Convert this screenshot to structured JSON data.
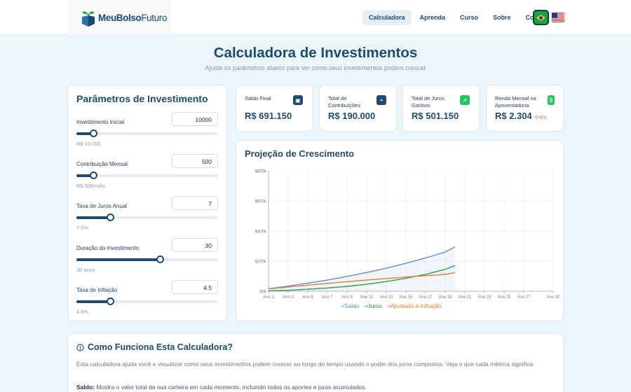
{
  "nav": {
    "logo_text_bold": "MeuBolso",
    "logo_text_light": "Futuro",
    "items": [
      {
        "label": "Calculadora"
      },
      {
        "label": "Aprenda"
      },
      {
        "label": "Curso"
      },
      {
        "label": "Sobre"
      },
      {
        "label": "Contato"
      }
    ],
    "active": "Calculadora",
    "flags": [
      "brazil-flag-icon",
      "usa-flag-icon"
    ]
  },
  "header": {
    "title": "Calculadora de Investimentos",
    "subtitle": "Ajuste os parâmetros abaixo para ver como seus investimentos podem crescer"
  },
  "params": {
    "title": "Parâmetros de Investimento",
    "items": [
      {
        "label": "Investimento Inicial",
        "value": "10000",
        "display": "R$ 10.000",
        "level": 0.12
      },
      {
        "label": "Contribuição Mensal",
        "value": "500",
        "display": "R$ 500/mês",
        "level": 0.12
      },
      {
        "label": "Taxa de Juros Anual",
        "value": "7",
        "display": "7.0%",
        "level": 0.24
      },
      {
        "label": "Duração do Investimento",
        "value": "30",
        "display": "30 anos",
        "level": 0.59
      },
      {
        "label": "Taxa de Inflação",
        "value": "4.5",
        "display": "4.5%",
        "level": 0.24
      }
    ]
  },
  "stats": [
    {
      "label": "Saldo Final",
      "value": "R$ 691.150",
      "suffix": "",
      "icon": "wallet-icon",
      "color": "#1d4a72"
    },
    {
      "label": "Total de Contribuições",
      "value": "R$ 190.000",
      "suffix": "",
      "icon": "piggy-bank-icon",
      "color": "#1d4a72"
    },
    {
      "label": "Total de Juros Ganhos",
      "value": "R$ 501.150",
      "suffix": "",
      "icon": "trending-up-icon",
      "color": "#22c55e"
    },
    {
      "label": "Renda Mensal na Aposentadoria",
      "value": "R$ 2.304",
      "suffix": "/mês",
      "icon": "dollar-icon",
      "color": "#22c55e"
    }
  ],
  "chart": {
    "title": "Projeção de Crescimento"
  },
  "chart_data": {
    "type": "line",
    "x": [
      "Ano 1",
      "Ano 3",
      "Ano 5",
      "Ano 7",
      "Ano 9",
      "Ano 11",
      "Ano 13",
      "Ano 15",
      "Ano 17",
      "Ano 19",
      "Ano 21",
      "Ano 23",
      "Ano 25",
      "Ano 27",
      "Ano 30"
    ],
    "ylim": [
      0,
      800000
    ],
    "y_ticks": [
      "$0k",
      "$200k",
      "$400k",
      "$600k",
      "$800k"
    ],
    "grid": true,
    "legend": "bottom",
    "series": [
      {
        "name": "Saldo",
        "color": "#5b8ed6",
        "points": [
          [
            1,
            16000
          ],
          [
            3,
            34000
          ],
          [
            5,
            53000
          ],
          [
            7,
            74000
          ],
          [
            9,
            98000
          ],
          [
            11,
            124000
          ],
          [
            13,
            153000
          ],
          [
            15,
            186000
          ],
          [
            17,
            221000
          ],
          [
            19,
            260000
          ],
          [
            20,
            295000
          ]
        ]
      },
      {
        "name": "Juros",
        "color": "#22a34a",
        "points": [
          [
            1,
            2000
          ],
          [
            3,
            6000
          ],
          [
            5,
            13000
          ],
          [
            7,
            21000
          ],
          [
            9,
            32000
          ],
          [
            11,
            46000
          ],
          [
            13,
            64000
          ],
          [
            15,
            86000
          ],
          [
            17,
            112000
          ],
          [
            19,
            145000
          ],
          [
            20,
            170000
          ]
        ]
      },
      {
        "name": "Ajustado à Inflação",
        "color": "#f07a2a",
        "points": [
          [
            1,
            15000
          ],
          [
            3,
            28000
          ],
          [
            5,
            40000
          ],
          [
            7,
            52000
          ],
          [
            9,
            63000
          ],
          [
            11,
            74000
          ],
          [
            13,
            84000
          ],
          [
            15,
            94000
          ],
          [
            17,
            103000
          ],
          [
            19,
            111000
          ],
          [
            20,
            124000
          ]
        ]
      }
    ]
  },
  "how": {
    "title": "Como Funciona Esta Calculadora?",
    "intro": "Esta calculadora ajuda você a visualizar como seus investimentos podem crescer ao longo do tempo usando o poder dos juros compostos. Veja o que cada métrica significa:",
    "saldo_term": "Saldo:",
    "saldo_text": " Mostra o valor total da sua carteira em cada momento, incluindo todos os aportes e juros acumulados."
  }
}
